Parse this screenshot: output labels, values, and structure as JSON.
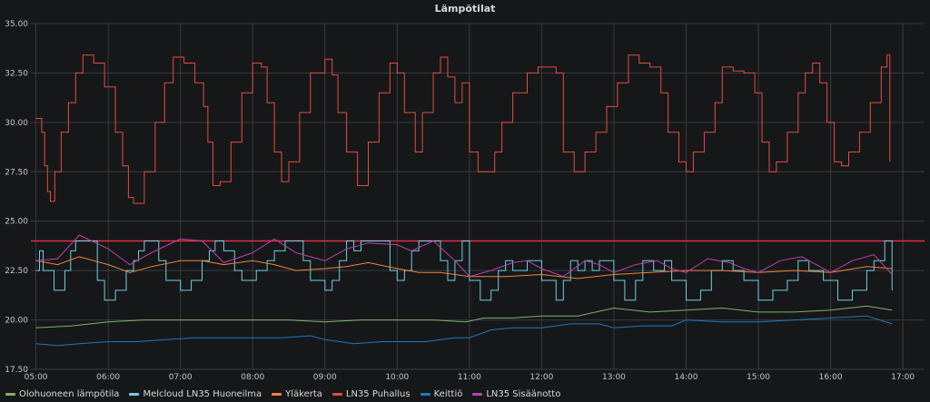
{
  "chart_data": {
    "type": "line",
    "title": "Lämpötilat",
    "xlabel": "",
    "ylabel": "",
    "grid": true,
    "legend_position": "bottom",
    "xlim": [
      4.93,
      17.3
    ],
    "ylim": [
      17.5,
      35.0
    ],
    "y_ticks": [
      17.5,
      20.0,
      22.5,
      25.0,
      27.5,
      30.0,
      32.5,
      35.0
    ],
    "y_tick_labels": [
      "17.50",
      "20.00",
      "22.50",
      "25.00",
      "27.50",
      "30.00",
      "32.50",
      "35.00"
    ],
    "x_ticks": [
      5,
      6,
      7,
      8,
      9,
      10,
      11,
      12,
      13,
      14,
      15,
      16,
      17
    ],
    "x_tick_labels": [
      "05:00",
      "06:00",
      "07:00",
      "08:00",
      "09:00",
      "10:00",
      "11:00",
      "12:00",
      "13:00",
      "14:00",
      "15:00",
      "16:00",
      "17:00"
    ],
    "threshold": {
      "value": 24.0,
      "color": "#e02f44"
    },
    "series": [
      {
        "name": "Olohuoneen lämpötila",
        "color": "#7eb26d",
        "step": false,
        "x": [
          5.0,
          5.5,
          6.0,
          6.5,
          7.0,
          7.5,
          8.0,
          8.5,
          9.0,
          9.5,
          10.0,
          10.5,
          10.95,
          11.2,
          11.6,
          12.0,
          12.5,
          13.0,
          13.5,
          14.0,
          14.5,
          15.0,
          15.5,
          16.0,
          16.5,
          16.85
        ],
        "values": [
          19.6,
          19.7,
          19.9,
          20.0,
          20.0,
          20.0,
          20.0,
          20.0,
          19.9,
          20.0,
          20.0,
          20.0,
          19.9,
          20.1,
          20.1,
          20.2,
          20.2,
          20.6,
          20.4,
          20.5,
          20.6,
          20.4,
          20.4,
          20.5,
          20.7,
          20.5
        ]
      },
      {
        "name": "Melcloud LN35 Huoneilma",
        "color": "#6ed0e0",
        "step": true,
        "x": [
          5.0,
          5.05,
          5.1,
          5.25,
          5.4,
          5.48,
          5.55,
          5.6,
          5.85,
          5.95,
          6.1,
          6.25,
          6.35,
          6.42,
          6.5,
          6.6,
          6.7,
          6.8,
          7.0,
          7.15,
          7.3,
          7.4,
          7.48,
          7.55,
          7.6,
          7.75,
          7.85,
          8.05,
          8.2,
          8.3,
          8.45,
          8.6,
          8.7,
          8.8,
          9.0,
          9.1,
          9.2,
          9.3,
          9.4,
          9.5,
          9.8,
          9.9,
          10.0,
          10.1,
          10.2,
          10.3,
          10.45,
          10.6,
          10.7,
          10.8,
          10.9,
          11.0,
          11.15,
          11.3,
          11.4,
          11.5,
          11.6,
          11.8,
          12.0,
          12.2,
          12.3,
          12.4,
          12.5,
          12.6,
          12.7,
          12.8,
          13.0,
          13.15,
          13.3,
          13.4,
          13.55,
          13.7,
          13.8,
          14.0,
          14.2,
          14.35,
          14.5,
          14.65,
          14.8,
          15.0,
          15.2,
          15.4,
          15.55,
          15.7,
          15.9,
          16.1,
          16.3,
          16.5,
          16.6,
          16.75,
          16.85
        ],
        "values": [
          22.5,
          23.5,
          22.5,
          21.5,
          22.5,
          23.5,
          24.0,
          24.0,
          22.0,
          21.0,
          21.5,
          22.5,
          23.0,
          23.5,
          24.0,
          24.0,
          23.0,
          22.0,
          21.5,
          22.0,
          23.0,
          23.5,
          24.0,
          24.0,
          23.5,
          22.5,
          22.0,
          22.5,
          23.0,
          23.5,
          24.0,
          24.0,
          23.0,
          22.0,
          21.5,
          22.0,
          23.0,
          24.0,
          23.5,
          24.0,
          24.0,
          22.5,
          22.0,
          22.5,
          23.5,
          24.0,
          24.0,
          23.0,
          22.0,
          23.0,
          24.0,
          22.0,
          21.0,
          21.5,
          22.5,
          23.0,
          22.5,
          23.0,
          22.0,
          21.0,
          22.0,
          23.0,
          22.5,
          23.0,
          22.5,
          23.0,
          22.0,
          21.0,
          22.0,
          23.0,
          22.5,
          23.0,
          22.0,
          21.0,
          21.5,
          22.5,
          23.0,
          22.5,
          22.0,
          21.0,
          21.5,
          22.0,
          23.0,
          22.5,
          22.0,
          21.0,
          21.5,
          22.5,
          23.0,
          24.0,
          21.5
        ]
      },
      {
        "name": "Yläkerta",
        "color": "#ef843c",
        "step": false,
        "x": [
          5.0,
          5.3,
          5.6,
          6.0,
          6.3,
          6.6,
          7.0,
          7.3,
          7.6,
          8.0,
          8.3,
          8.6,
          9.0,
          9.3,
          9.6,
          10.0,
          10.3,
          10.6,
          11.0,
          11.5,
          12.0,
          12.5,
          13.0,
          13.5,
          14.0,
          14.5,
          15.0,
          15.5,
          16.0,
          16.5,
          16.85
        ],
        "values": [
          23.0,
          22.8,
          23.2,
          22.8,
          22.4,
          22.7,
          23.0,
          23.0,
          22.8,
          23.0,
          22.8,
          22.5,
          22.6,
          22.7,
          22.9,
          22.6,
          22.4,
          22.4,
          22.2,
          22.2,
          22.3,
          22.1,
          22.3,
          22.4,
          22.5,
          22.5,
          22.4,
          22.5,
          22.4,
          22.7,
          22.6
        ]
      },
      {
        "name": "LN35 Puhallus",
        "color": "#e24d42",
        "step": true,
        "x": [
          5.0,
          5.08,
          5.12,
          5.16,
          5.2,
          5.26,
          5.35,
          5.45,
          5.55,
          5.65,
          5.8,
          5.95,
          6.1,
          6.2,
          6.28,
          6.35,
          6.5,
          6.65,
          6.78,
          6.9,
          7.05,
          7.2,
          7.32,
          7.38,
          7.45,
          7.55,
          7.7,
          7.85,
          8.0,
          8.12,
          8.2,
          8.3,
          8.4,
          8.5,
          8.65,
          8.8,
          9.0,
          9.1,
          9.18,
          9.3,
          9.45,
          9.6,
          9.75,
          9.9,
          10.0,
          10.1,
          10.25,
          10.35,
          10.5,
          10.6,
          10.7,
          10.8,
          10.9,
          11.0,
          11.12,
          11.25,
          11.35,
          11.45,
          11.6,
          11.8,
          11.95,
          12.1,
          12.2,
          12.3,
          12.45,
          12.6,
          12.75,
          12.9,
          13.05,
          13.2,
          13.35,
          13.5,
          13.65,
          13.75,
          13.9,
          14.0,
          14.1,
          14.25,
          14.4,
          14.5,
          14.65,
          14.8,
          14.95,
          15.05,
          15.15,
          15.25,
          15.4,
          15.55,
          15.65,
          15.75,
          15.85,
          15.95,
          16.05,
          16.15,
          16.25,
          16.4,
          16.55,
          16.7,
          16.78,
          16.82
        ],
        "values": [
          30.2,
          29.5,
          27.8,
          26.5,
          26.0,
          27.5,
          29.5,
          31.0,
          32.5,
          33.4,
          33.0,
          31.8,
          29.5,
          27.8,
          26.2,
          25.9,
          27.5,
          30.0,
          32.0,
          33.3,
          33.0,
          32.0,
          30.8,
          29.0,
          26.8,
          27.0,
          29.0,
          31.5,
          33.0,
          32.8,
          31.0,
          28.5,
          27.0,
          28.0,
          30.5,
          32.5,
          33.2,
          32.4,
          30.5,
          28.5,
          26.8,
          29.0,
          31.5,
          33.0,
          32.5,
          30.5,
          28.5,
          30.5,
          32.5,
          33.3,
          32.3,
          31.0,
          32.0,
          28.5,
          27.5,
          27.5,
          28.5,
          30.0,
          31.5,
          32.5,
          32.8,
          32.8,
          32.5,
          28.5,
          27.5,
          28.5,
          29.5,
          30.8,
          32.0,
          33.4,
          33.0,
          32.8,
          31.5,
          29.5,
          28.0,
          27.5,
          28.5,
          29.5,
          31.0,
          32.8,
          32.6,
          32.5,
          31.5,
          29.0,
          27.5,
          28.0,
          29.5,
          31.5,
          32.5,
          33.0,
          32.0,
          30.0,
          28.0,
          27.8,
          28.5,
          29.5,
          31.0,
          32.8,
          33.4,
          28.0
        ]
      },
      {
        "name": "Keittiö",
        "color": "#1f78c1",
        "step": false,
        "x": [
          5.0,
          5.3,
          5.6,
          6.0,
          6.4,
          6.8,
          7.2,
          7.6,
          8.0,
          8.4,
          8.8,
          9.0,
          9.4,
          9.8,
          10.0,
          10.4,
          10.8,
          11.0,
          11.3,
          11.6,
          12.0,
          12.4,
          12.8,
          13.0,
          13.4,
          13.8,
          14.0,
          14.5,
          15.0,
          15.5,
          16.0,
          16.5,
          16.85
        ],
        "values": [
          18.8,
          18.7,
          18.8,
          18.9,
          18.9,
          19.0,
          19.1,
          19.1,
          19.1,
          19.1,
          19.2,
          19.0,
          18.8,
          18.9,
          18.9,
          18.9,
          19.1,
          19.1,
          19.5,
          19.6,
          19.6,
          19.8,
          19.8,
          19.6,
          19.7,
          19.7,
          20.0,
          19.9,
          19.9,
          20.0,
          20.1,
          20.2,
          19.8
        ]
      },
      {
        "name": "LN35 Sisäänotto",
        "color": "#ba43a9",
        "step": false,
        "x": [
          5.0,
          5.3,
          5.6,
          6.0,
          6.3,
          6.6,
          7.0,
          7.3,
          7.6,
          8.0,
          8.3,
          8.6,
          9.0,
          9.3,
          9.6,
          10.0,
          10.2,
          10.5,
          10.8,
          11.0,
          11.3,
          11.6,
          11.8,
          12.0,
          12.3,
          12.6,
          12.8,
          13.0,
          13.3,
          13.6,
          13.8,
          14.0,
          14.3,
          14.6,
          14.8,
          15.0,
          15.3,
          15.6,
          15.8,
          16.0,
          16.3,
          16.6,
          16.85
        ],
        "values": [
          23.0,
          23.1,
          24.3,
          23.6,
          22.8,
          23.4,
          24.1,
          24.0,
          22.9,
          23.4,
          24.1,
          23.4,
          23.0,
          23.6,
          23.9,
          23.8,
          23.5,
          24.0,
          23.0,
          22.2,
          22.5,
          22.9,
          23.0,
          22.6,
          22.2,
          23.0,
          22.8,
          22.4,
          22.8,
          23.0,
          22.6,
          22.4,
          23.1,
          22.9,
          22.6,
          22.4,
          23.0,
          23.2,
          22.8,
          22.4,
          23.0,
          23.3,
          22.3
        ]
      }
    ]
  }
}
